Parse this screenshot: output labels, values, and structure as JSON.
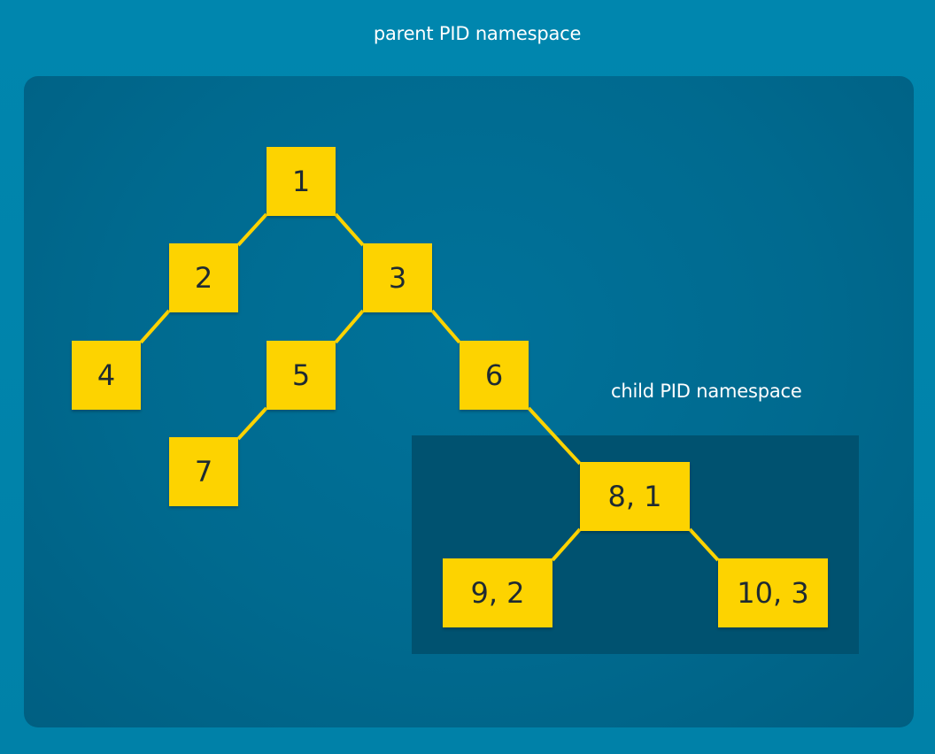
{
  "colors": {
    "background": "#0083ab",
    "parent_panel": "#006a8f",
    "child_panel": "#005270",
    "node_fill": "#fdd300",
    "edge": "#fdd300",
    "node_text": "#1e2a32",
    "label_text": "#ffffff"
  },
  "parent_namespace": {
    "label": "parent PID namespace"
  },
  "child_namespace": {
    "label": "child PID namespace"
  },
  "nodes": {
    "n1": "1",
    "n2": "2",
    "n3": "3",
    "n4": "4",
    "n5": "5",
    "n6": "6",
    "n7": "7",
    "n8": "8, 1",
    "n9": "9, 2",
    "n10": "10, 3"
  },
  "edges": [
    [
      "n1",
      "n2"
    ],
    [
      "n1",
      "n3"
    ],
    [
      "n2",
      "n4"
    ],
    [
      "n3",
      "n5"
    ],
    [
      "n3",
      "n6"
    ],
    [
      "n5",
      "n7"
    ],
    [
      "n6",
      "n8"
    ],
    [
      "n8",
      "n9"
    ],
    [
      "n8",
      "n10"
    ]
  ]
}
